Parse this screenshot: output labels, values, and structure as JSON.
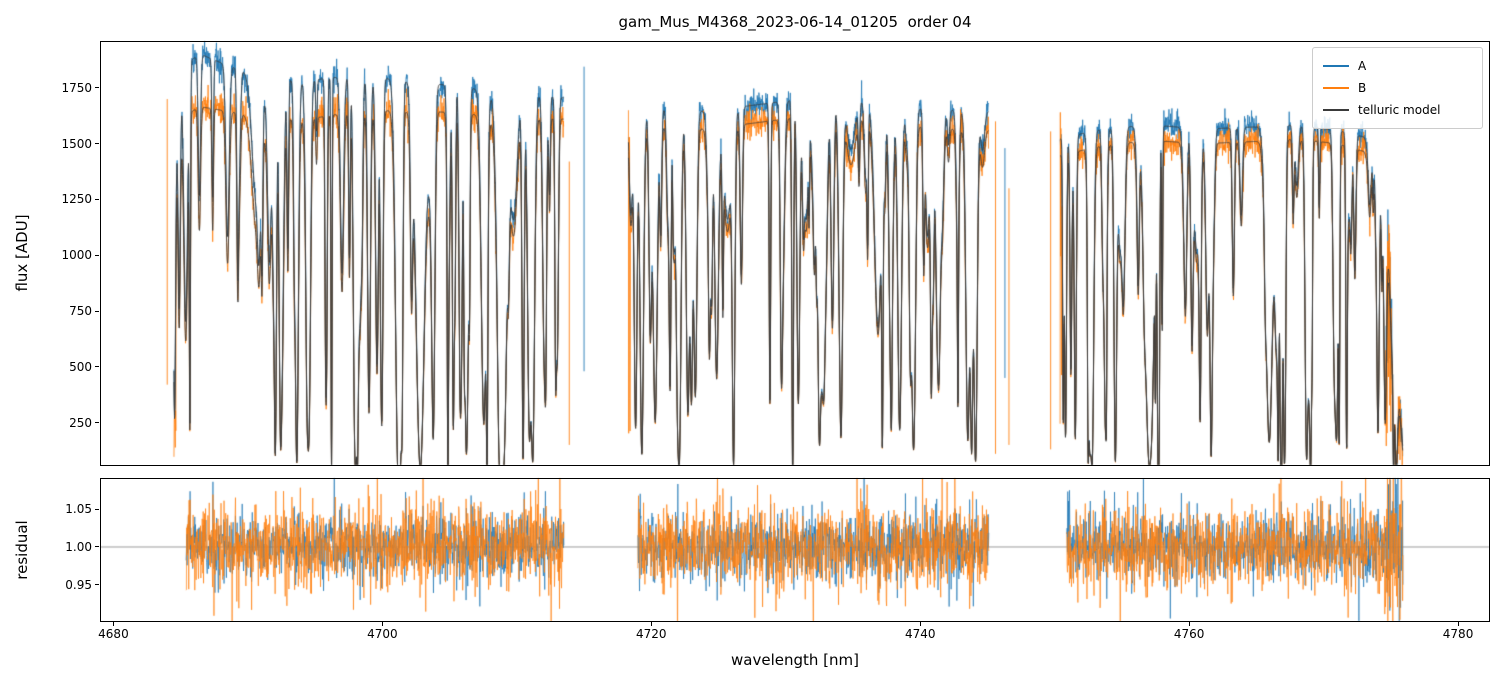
{
  "legend": {
    "entries": [
      {
        "label": "A",
        "color": "#1f77b4"
      },
      {
        "label": "B",
        "color": "#ff7f0e"
      },
      {
        "label": "telluric model",
        "color": "#3a3a3a"
      }
    ]
  },
  "chart_data": [
    {
      "panel": "flux",
      "type": "line",
      "title": "gam_Mus_M4368_2023-06-14_01205  order 04",
      "ylabel": "flux [ADU]",
      "xlim": [
        4679.0,
        4782.3
      ],
      "ylim": [
        60,
        1960
      ],
      "xticks": [
        4680,
        4700,
        4720,
        4740,
        4760,
        4780
      ],
      "xticklabels_visible": false,
      "yticks": [
        250,
        500,
        750,
        1000,
        1250,
        1500,
        1750
      ],
      "yticklabels": [
        "250",
        "500",
        "750",
        "1000",
        "1250",
        "1500",
        "1750"
      ],
      "grid": false,
      "legend_loc": "upper right",
      "series_names": [
        "A",
        "B",
        "telluric model"
      ],
      "segments": [
        {
          "x_range": [
            4684.5,
            4713.5
          ],
          "continuum_A": [
            [
              4684.5,
              1560
            ],
            [
              4685.3,
              1860
            ],
            [
              4686.5,
              1900
            ],
            [
              4688.5,
              1850
            ],
            [
              4691,
              1800
            ],
            [
              4694,
              1780
            ],
            [
              4697,
              1800
            ],
            [
              4701,
              1790
            ],
            [
              4705,
              1760
            ],
            [
              4709,
              1730
            ],
            [
              4713.5,
              1705
            ]
          ],
          "continuum_B": [
            [
              4684.5,
              1400
            ],
            [
              4685.3,
              1630
            ],
            [
              4686.5,
              1665
            ],
            [
              4688.5,
              1645
            ],
            [
              4691,
              1620
            ],
            [
              4694,
              1605
            ],
            [
              4697,
              1635
            ],
            [
              4701,
              1650
            ],
            [
              4705,
              1640
            ],
            [
              4709,
              1620
            ],
            [
              4713.5,
              1610
            ]
          ]
        },
        {
          "x_range": [
            4718.3,
            4745.1
          ],
          "continuum_A": [
            [
              4718.3,
              1620
            ],
            [
              4720,
              1655
            ],
            [
              4724,
              1645
            ],
            [
              4728,
              1675
            ],
            [
              4731,
              1700
            ],
            [
              4733.5,
              1715
            ],
            [
              4736,
              1690
            ],
            [
              4739,
              1660
            ],
            [
              4742,
              1650
            ],
            [
              4745.1,
              1645
            ]
          ],
          "continuum_B": [
            [
              4718.3,
              1545
            ],
            [
              4720,
              1575
            ],
            [
              4724,
              1565
            ],
            [
              4728,
              1595
            ],
            [
              4731,
              1620
            ],
            [
              4733.5,
              1635
            ],
            [
              4736,
              1610
            ],
            [
              4739,
              1580
            ],
            [
              4742,
              1565
            ],
            [
              4745.1,
              1560
            ]
          ]
        },
        {
          "x_range": [
            4750.4,
            4775.9
          ],
          "rolloff": true,
          "continuum_A": [
            [
              4750.4,
              1520
            ],
            [
              4753,
              1560
            ],
            [
              4757,
              1585
            ],
            [
              4761,
              1565
            ],
            [
              4765,
              1575
            ],
            [
              4768,
              1585
            ],
            [
              4771,
              1560
            ],
            [
              4773,
              1530
            ],
            [
              4774.3,
              1330
            ],
            [
              4775.2,
              700
            ],
            [
              4775.9,
              130
            ]
          ],
          "continuum_B": [
            [
              4750.4,
              1445
            ],
            [
              4753,
              1485
            ],
            [
              4757,
              1515
            ],
            [
              4761,
              1500
            ],
            [
              4765,
              1510
            ],
            [
              4768,
              1520
            ],
            [
              4771,
              1500
            ],
            [
              4773,
              1465
            ],
            [
              4774.3,
              1260
            ],
            [
              4775.2,
              640
            ],
            [
              4775.9,
              110
            ]
          ]
        }
      ],
      "absorption_lines": {
        "density_per_nm": 2.9,
        "width_nm": [
          0.05,
          0.2
        ],
        "deep_fraction": 0.5,
        "floor": 0.02,
        "seed": 20230614
      },
      "noise_sigma": {
        "A": 0.018,
        "B": 0.024
      },
      "edge_spikes": [
        {
          "x": 4684.0,
          "y": [
            420,
            1700
          ],
          "series": "B"
        },
        {
          "x": 4713.9,
          "y": [
            150,
            1420
          ],
          "series": "B"
        },
        {
          "x": 4715.0,
          "y": [
            480,
            1845
          ],
          "series": "A"
        },
        {
          "x": 4745.6,
          "y": [
            110,
            1600
          ],
          "series": "B"
        },
        {
          "x": 4746.3,
          "y": [
            450,
            1480
          ],
          "series": "A"
        },
        {
          "x": 4746.6,
          "y": [
            150,
            1300
          ],
          "series": "B"
        },
        {
          "x": 4749.7,
          "y": [
            130,
            1555
          ],
          "series": "B"
        }
      ]
    },
    {
      "panel": "residual",
      "type": "line",
      "ylabel": "residual",
      "xlabel": "wavelength [nm]",
      "xlim": [
        4679.0,
        4782.3
      ],
      "ylim": [
        0.9026,
        1.0908
      ],
      "xticks": [
        4680,
        4700,
        4720,
        4740,
        4760,
        4780
      ],
      "xticklabels": [
        "4680",
        "4700",
        "4720",
        "4740",
        "4760",
        "4780"
      ],
      "yticks": [
        0.95,
        1.0,
        1.05
      ],
      "yticklabels": [
        "0.95",
        "1.00",
        "1.05"
      ],
      "hline": 1.0,
      "segments": [
        [
          4685.4,
          4713.5
        ],
        [
          4719.0,
          4745.1
        ],
        [
          4750.9,
          4775.9
        ]
      ],
      "noise_sigma": {
        "A": 0.021,
        "B": 0.027
      },
      "edge_boost": {
        "x_from": 4774.5,
        "factor": 2.3
      },
      "seed": 614
    }
  ]
}
